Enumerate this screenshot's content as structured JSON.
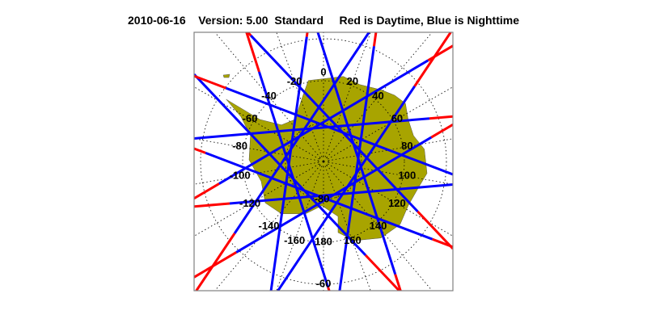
{
  "title": {
    "date": "2010-06-16",
    "version": "Version: 5.00",
    "mode": "Standard",
    "legend": "Red is Daytime, Blue is Nighttime"
  },
  "map": {
    "projection": "south polar stereographic",
    "longitude_labels": [
      "0",
      "20",
      "40",
      "60",
      "80",
      "100",
      "120",
      "140",
      "160",
      "180",
      "-160",
      "-140",
      "-120",
      "-100",
      "-80",
      "-60",
      "-40",
      "-20"
    ],
    "latitude_labels": [
      "-80",
      "-60"
    ],
    "grid": "dotted",
    "colors": {
      "land": "#a8a400",
      "daytime_track": "#ff0000",
      "nighttime_track": "#0000ff",
      "frame": "#808080"
    }
  }
}
